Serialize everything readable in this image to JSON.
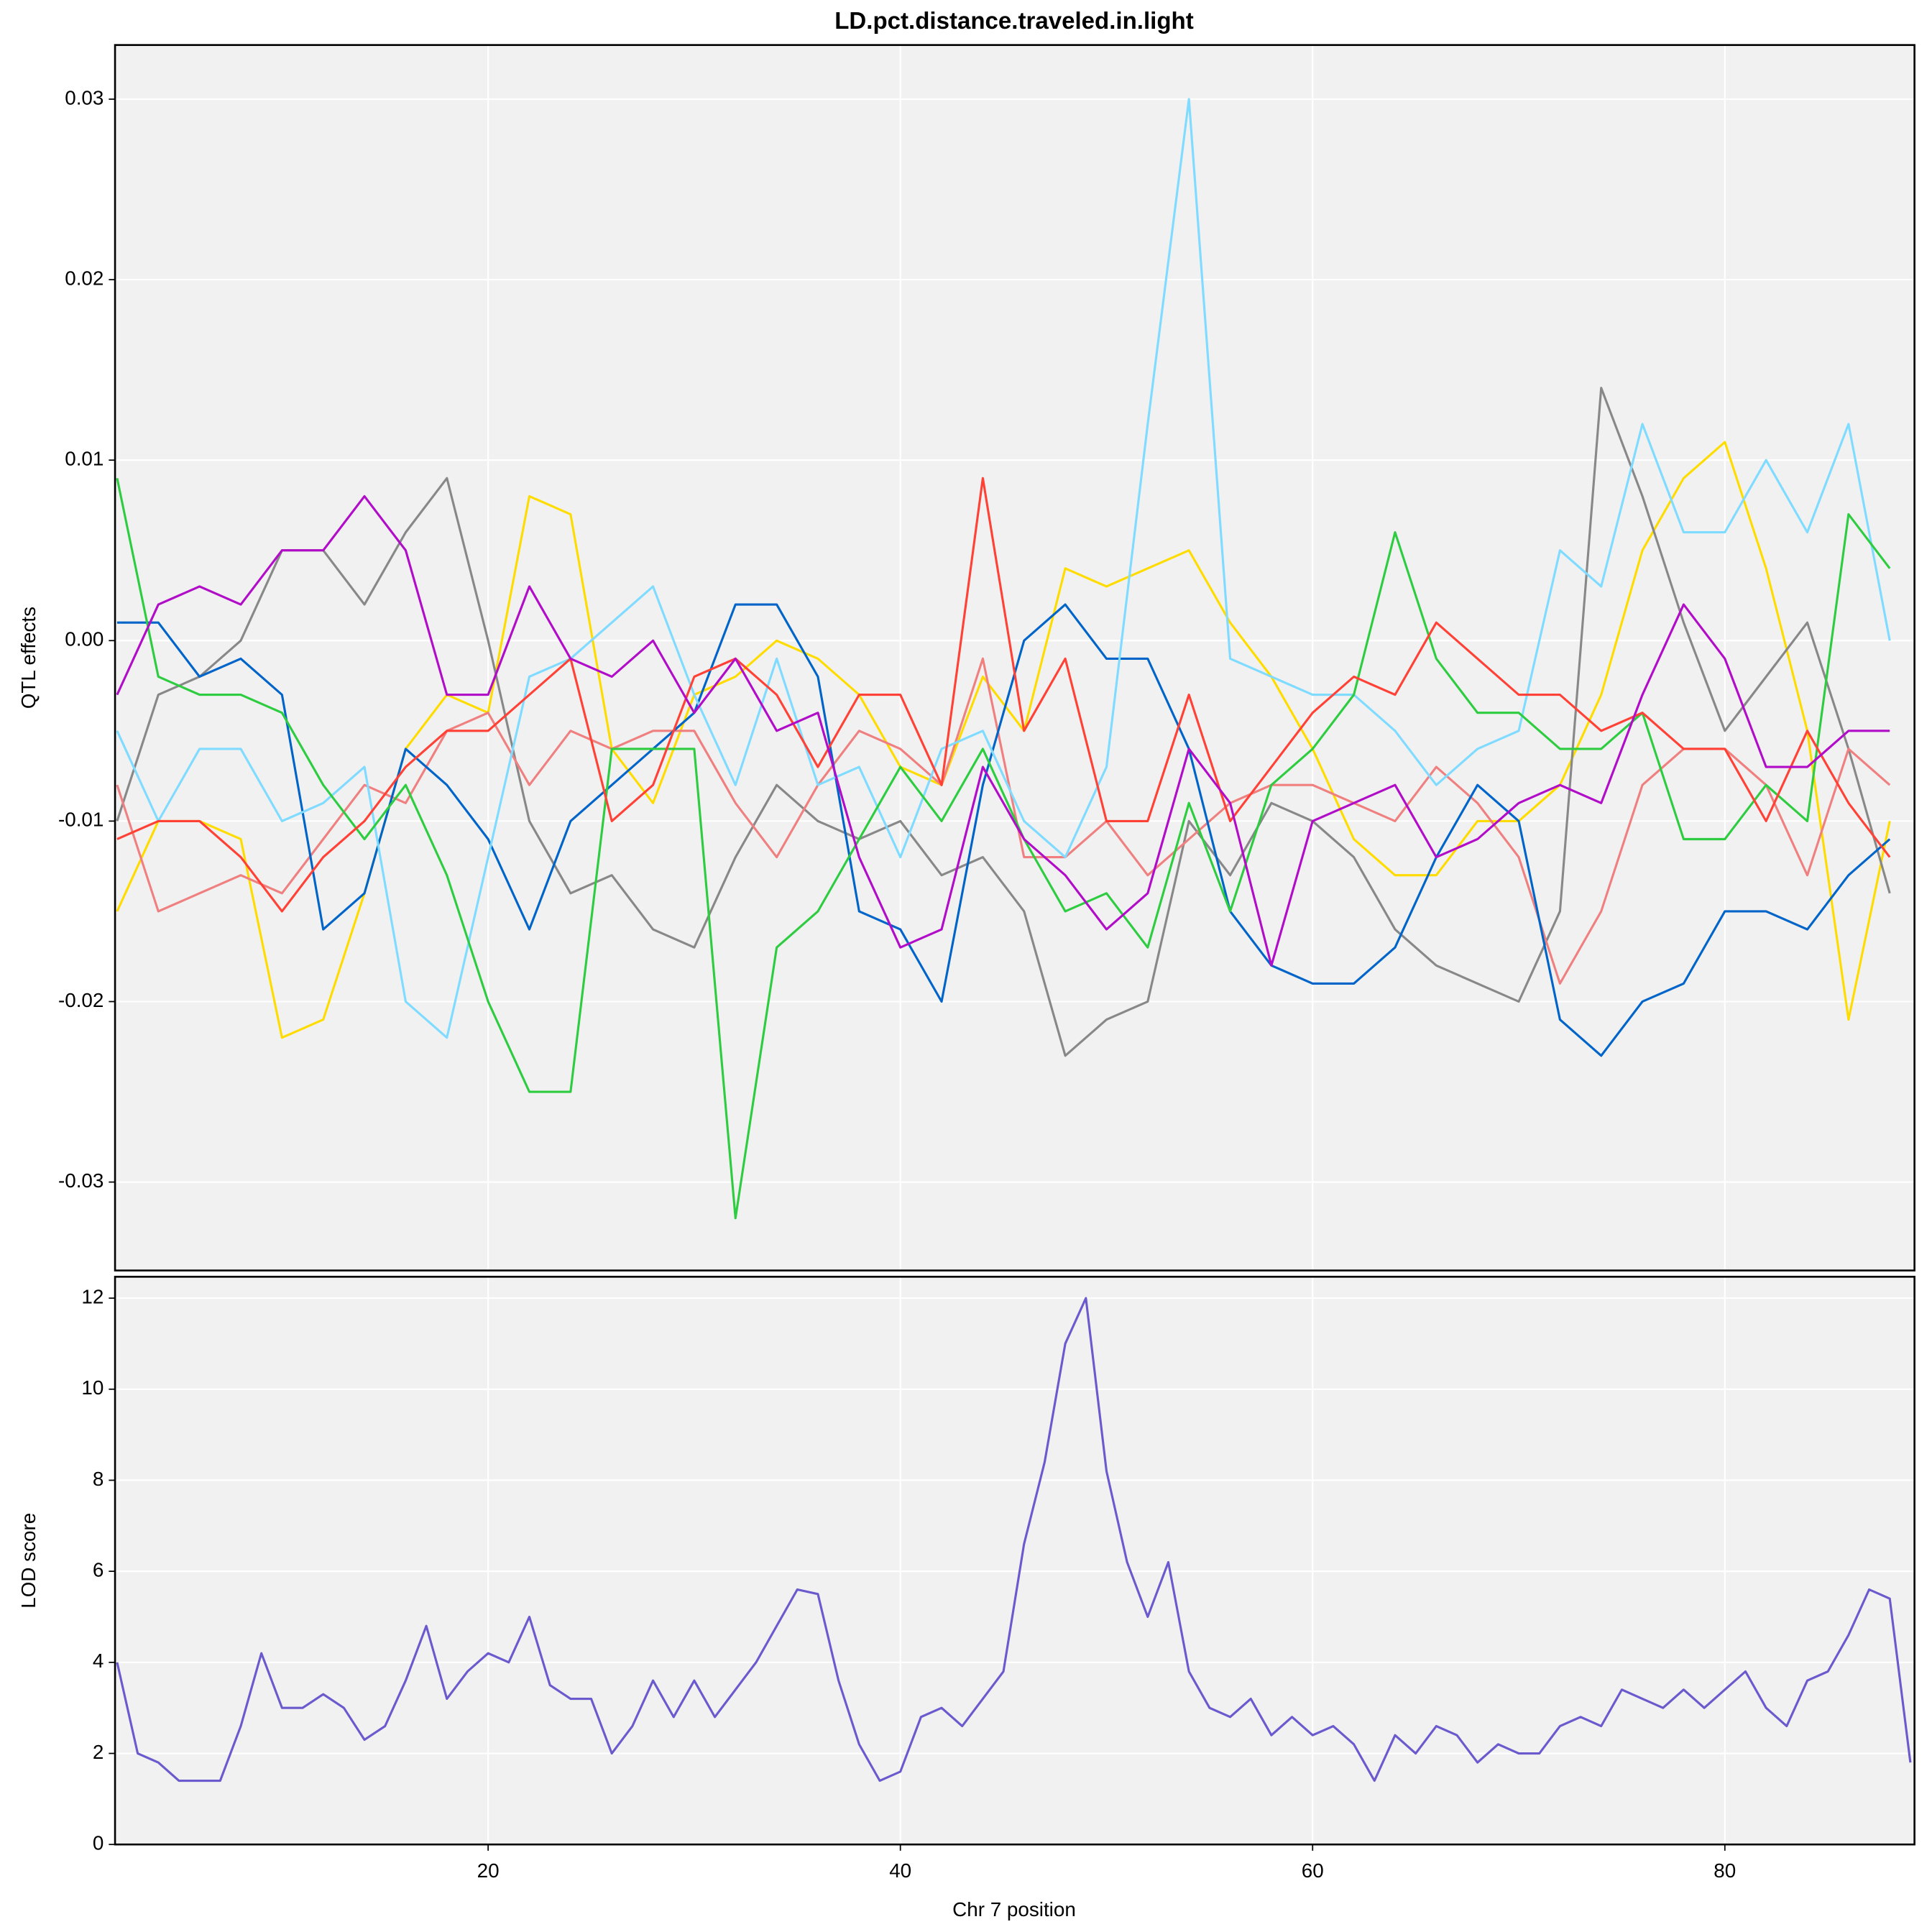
{
  "chart_data": [
    {
      "type": "line",
      "title": "LD.pct.distance.traveled.in.light",
      "ylabel": "QTL effects",
      "x": [
        2,
        4,
        6,
        8,
        10,
        12,
        14,
        16,
        18,
        20,
        22,
        24,
        26,
        28,
        30,
        32,
        34,
        36,
        38,
        40,
        42,
        44,
        46,
        48,
        50,
        52,
        54,
        56,
        58,
        60,
        62,
        64,
        66,
        68,
        70,
        72,
        74,
        76,
        78,
        80,
        82,
        84,
        86,
        88
      ],
      "xlim": [
        1.9,
        89.2
      ],
      "ylim": [
        -0.0349,
        0.033
      ],
      "yticks": [
        -0.03,
        -0.02,
        -0.01,
        {
          "value": 0,
          "label": "0.00"
        },
        0.01,
        0.02,
        0.03
      ],
      "grid": true,
      "series": [
        {
          "color": "#FFDC00",
          "values": [
            -0.015,
            -0.01,
            -0.01,
            -0.011,
            -0.022,
            -0.021,
            -0.014,
            -0.006,
            -0.003,
            -0.004,
            0.008,
            0.007,
            -0.006,
            -0.009,
            -0.003,
            -0.002,
            0,
            -0.001,
            -0.003,
            -0.007,
            -0.008,
            -0.002,
            -0.005,
            0.004,
            0.003,
            0.004,
            0.005,
            0.001,
            -0.002,
            -0.006,
            -0.011,
            -0.013,
            -0.013,
            -0.01,
            -0.01,
            -0.008,
            -0.003,
            0.005,
            0.009,
            0.011,
            0.004,
            -0.005,
            -0.021,
            -0.01
          ]
        },
        {
          "color": "#888888",
          "values": [
            -0.01,
            -0.003,
            -0.002,
            0,
            0.005,
            0.005,
            0.002,
            0.006,
            0.009,
            0,
            -0.01,
            -0.014,
            -0.013,
            -0.016,
            -0.017,
            -0.012,
            -0.008,
            -0.01,
            -0.011,
            -0.01,
            -0.013,
            -0.012,
            -0.015,
            -0.023,
            -0.021,
            -0.02,
            -0.01,
            -0.013,
            -0.009,
            -0.01,
            -0.012,
            -0.016,
            -0.018,
            -0.019,
            -0.02,
            -0.015,
            0.014,
            0.008,
            0.001,
            -0.005,
            -0.002,
            0.001,
            -0.006,
            -0.014
          ]
        },
        {
          "color": "#F08080",
          "values": [
            -0.008,
            -0.015,
            -0.014,
            -0.013,
            -0.014,
            -0.011,
            -0.008,
            -0.009,
            -0.005,
            -0.004,
            -0.008,
            -0.005,
            -0.006,
            -0.005,
            -0.005,
            -0.009,
            -0.012,
            -0.008,
            -0.005,
            -0.006,
            -0.008,
            -0.001,
            -0.012,
            -0.012,
            -0.01,
            -0.013,
            -0.011,
            -0.009,
            -0.008,
            -0.008,
            -0.009,
            -0.01,
            -0.007,
            -0.009,
            -0.012,
            -0.019,
            -0.015,
            -0.008,
            -0.006,
            -0.006,
            -0.008,
            -0.013,
            -0.006,
            -0.008
          ]
        },
        {
          "color": "#0064C9",
          "values": [
            0.001,
            0.001,
            -0.002,
            -0.001,
            -0.003,
            -0.016,
            -0.014,
            -0.006,
            -0.008,
            -0.011,
            -0.016,
            -0.01,
            -0.008,
            -0.006,
            -0.004,
            0.002,
            0.002,
            -0.002,
            -0.015,
            -0.016,
            -0.02,
            -0.008,
            0,
            0.002,
            -0.001,
            -0.001,
            -0.006,
            -0.015,
            -0.018,
            -0.019,
            -0.019,
            -0.017,
            -0.012,
            -0.008,
            -0.01,
            -0.021,
            -0.023,
            -0.02,
            -0.019,
            -0.015,
            -0.015,
            -0.016,
            -0.013,
            -0.011
          ]
        },
        {
          "color": "#7FDBFF",
          "values": [
            -0.005,
            -0.01,
            -0.006,
            -0.006,
            -0.01,
            -0.009,
            -0.007,
            -0.02,
            -0.022,
            -0.012,
            -0.002,
            -0.001,
            0.001,
            0.003,
            -0.003,
            -0.008,
            -0.001,
            -0.008,
            -0.007,
            -0.012,
            -0.006,
            -0.005,
            -0.01,
            -0.012,
            -0.007,
            0.012,
            0.03,
            -0.001,
            -0.002,
            -0.003,
            -0.003,
            -0.005,
            -0.008,
            -0.006,
            -0.005,
            0.005,
            0.003,
            0.012,
            0.006,
            0.006,
            0.01,
            0.006,
            0.012,
            0
          ]
        },
        {
          "color": "#2ECC40",
          "values": [
            0.009,
            -0.002,
            -0.003,
            -0.003,
            -0.004,
            -0.008,
            -0.011,
            -0.008,
            -0.013,
            -0.02,
            -0.025,
            -0.025,
            -0.006,
            -0.006,
            -0.006,
            -0.032,
            -0.017,
            -0.015,
            -0.011,
            -0.007,
            -0.01,
            -0.006,
            -0.011,
            -0.015,
            -0.014,
            -0.017,
            -0.009,
            -0.015,
            -0.008,
            -0.006,
            -0.003,
            0.006,
            -0.001,
            -0.004,
            -0.004,
            -0.006,
            -0.006,
            -0.004,
            -0.011,
            -0.011,
            -0.008,
            -0.01,
            0.007,
            0.004
          ]
        },
        {
          "color": "#FF4136",
          "values": [
            -0.011,
            -0.01,
            -0.01,
            -0.012,
            -0.015,
            -0.012,
            -0.01,
            -0.007,
            -0.005,
            -0.005,
            -0.003,
            -0.001,
            -0.01,
            -0.008,
            -0.002,
            -0.001,
            -0.003,
            -0.007,
            -0.003,
            -0.003,
            -0.008,
            0.009,
            -0.005,
            -0.001,
            -0.01,
            -0.01,
            -0.003,
            -0.01,
            -0.007,
            -0.004,
            -0.002,
            -0.003,
            0.001,
            -0.001,
            -0.003,
            -0.003,
            -0.005,
            -0.004,
            -0.006,
            -0.006,
            -0.01,
            -0.005,
            -0.009,
            -0.012
          ]
        },
        {
          "color": "#B10DC9",
          "values": [
            -0.003,
            0.002,
            0.003,
            0.002,
            0.005,
            0.005,
            0.008,
            0.005,
            -0.003,
            -0.003,
            0.003,
            -0.001,
            -0.002,
            0,
            -0.004,
            -0.001,
            -0.005,
            -0.004,
            -0.012,
            -0.017,
            -0.016,
            -0.007,
            -0.011,
            -0.013,
            -0.016,
            -0.014,
            -0.006,
            -0.009,
            -0.018,
            -0.01,
            -0.009,
            -0.008,
            -0.012,
            -0.011,
            -0.009,
            -0.008,
            -0.009,
            -0.003,
            0.002,
            -0.001,
            -0.007,
            -0.007,
            -0.005,
            -0.005
          ]
        }
      ]
    },
    {
      "type": "line",
      "ylabel": "LOD score",
      "xlabel": "Chr 7 position",
      "x": [
        2,
        3,
        4,
        5,
        6,
        7,
        8,
        9,
        10,
        11,
        12,
        13,
        14,
        15,
        16,
        17,
        18,
        19,
        20,
        21,
        22,
        23,
        24,
        25,
        26,
        27,
        28,
        29,
        30,
        31,
        32,
        33,
        34,
        35,
        36,
        37,
        38,
        39,
        40,
        41,
        42,
        43,
        44,
        45,
        46,
        47,
        48,
        49,
        50,
        51,
        52,
        53,
        54,
        55,
        56,
        57,
        58,
        59,
        60,
        61,
        62,
        63,
        64,
        65,
        66,
        67,
        68,
        69,
        70,
        71,
        72,
        73,
        74,
        75,
        76,
        77,
        78,
        79,
        80,
        81,
        82,
        83,
        84,
        85,
        86,
        87,
        88,
        89
      ],
      "xlim": [
        1.9,
        89.2
      ],
      "ylim": [
        0,
        12.47
      ],
      "xticks": [
        20,
        40,
        60,
        80
      ],
      "yticks": [
        0,
        2,
        4,
        6,
        8,
        10,
        12
      ],
      "grid": true,
      "series": [
        {
          "color": "#6A5ACD",
          "values": [
            4.0,
            2.0,
            1.8,
            1.4,
            1.4,
            1.4,
            2.6,
            4.2,
            3.0,
            3.0,
            3.3,
            3.0,
            2.3,
            2.6,
            3.6,
            4.8,
            3.2,
            3.8,
            4.2,
            4.0,
            5.0,
            3.5,
            3.2,
            3.2,
            2.0,
            2.6,
            3.6,
            2.8,
            3.6,
            2.8,
            3.4,
            4.0,
            4.8,
            5.6,
            5.5,
            3.6,
            2.2,
            1.4,
            1.6,
            2.8,
            3.0,
            2.6,
            3.2,
            3.8,
            6.6,
            8.4,
            11.0,
            12.0,
            8.2,
            6.2,
            5.0,
            6.2,
            3.8,
            3.0,
            2.8,
            3.2,
            2.4,
            2.8,
            2.4,
            2.6,
            2.2,
            1.4,
            2.4,
            2.0,
            2.6,
            2.4,
            1.8,
            2.2,
            2.0,
            2.0,
            2.6,
            2.8,
            2.6,
            3.4,
            3.2,
            3.0,
            3.4,
            3.0,
            3.4,
            3.8,
            3.0,
            2.6,
            3.6,
            3.8,
            4.6,
            5.6,
            5.4,
            1.8
          ]
        }
      ]
    }
  ]
}
